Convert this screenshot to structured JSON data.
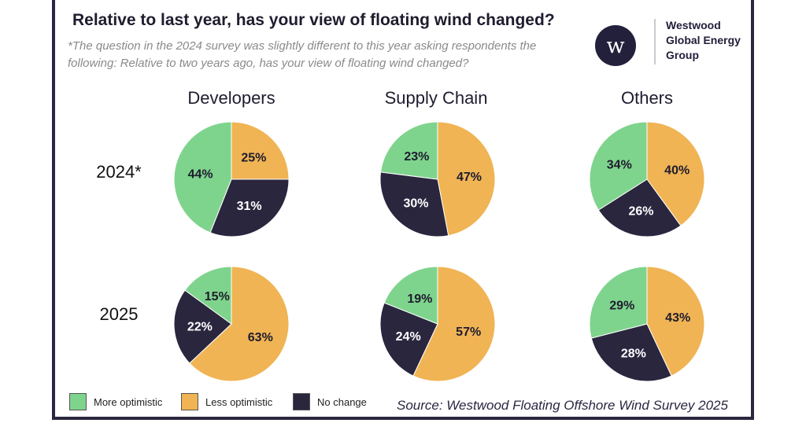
{
  "colors": {
    "more_optimistic": "#7fd48d",
    "less_optimistic": "#f0b454",
    "no_change": "#29263e",
    "frame": "#2a2740"
  },
  "header": {
    "title": "Relative to last year, has your view of floating wind changed?",
    "subtitle": "*The question in the 2024 survey was slightly different to this year asking respondents the following: Relative to two years ago, has your view of floating wind changed?"
  },
  "logo": {
    "mark": "w",
    "text_line1": "Westwood",
    "text_line2": "Global Energy",
    "text_line3": "Group"
  },
  "source": "Source: Westwood Floating Offshore Wind Survey 2025",
  "chart_data": {
    "type": "pie",
    "groups": [
      "Developers",
      "Supply Chain",
      "Others"
    ],
    "years": [
      "2024*",
      "2025"
    ],
    "legend": [
      {
        "key": "more_optimistic",
        "label": "More optimistic"
      },
      {
        "key": "less_optimistic",
        "label": "Less optimistic"
      },
      {
        "key": "no_change",
        "label": "No change"
      }
    ],
    "pies": [
      {
        "group": "Developers",
        "year": "2024*",
        "more_optimistic": 44,
        "less_optimistic": 25,
        "no_change": 31
      },
      {
        "group": "Supply Chain",
        "year": "2024*",
        "more_optimistic": 23,
        "less_optimistic": 47,
        "no_change": 30
      },
      {
        "group": "Others",
        "year": "2024*",
        "more_optimistic": 34,
        "less_optimistic": 40,
        "no_change": 26
      },
      {
        "group": "Developers",
        "year": "2025",
        "more_optimistic": 15,
        "less_optimistic": 63,
        "no_change": 22
      },
      {
        "group": "Supply Chain",
        "year": "2025",
        "more_optimistic": 19,
        "less_optimistic": 57,
        "no_change": 24
      },
      {
        "group": "Others",
        "year": "2025",
        "more_optimistic": 29,
        "less_optimistic": 43,
        "no_change": 28
      }
    ],
    "label_format": "{v}%",
    "legend_position": "bottom-left"
  }
}
